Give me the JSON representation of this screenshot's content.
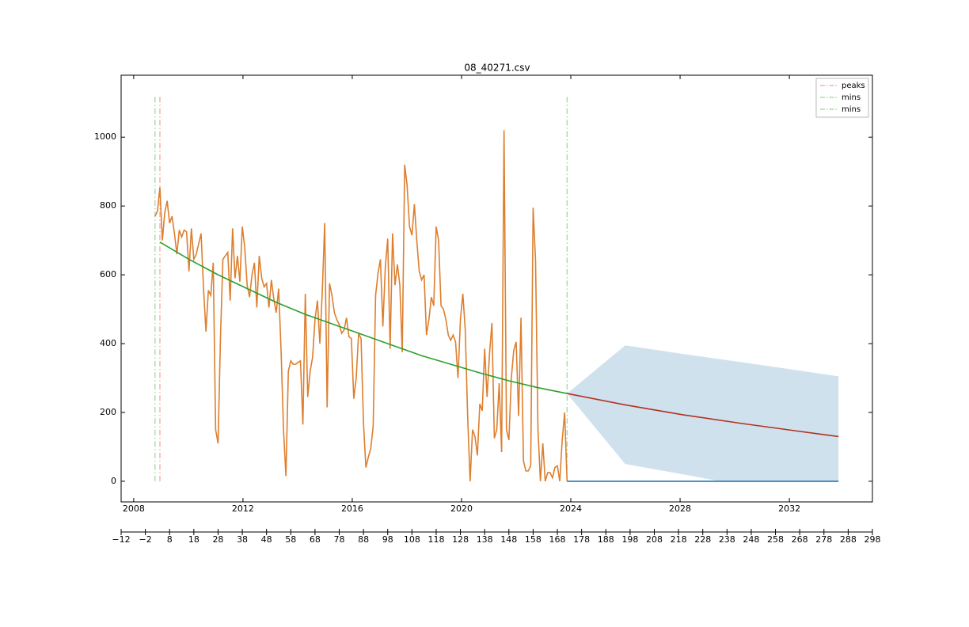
{
  "chart_data": {
    "type": "line",
    "title": "08_40271.csv",
    "xlim": [
      -12,
      298
    ],
    "xticks": [
      {
        "value": -12,
        "label": "−12"
      },
      {
        "value": -2,
        "label": "−2"
      },
      8,
      18,
      28,
      38,
      48,
      58,
      68,
      78,
      88,
      98,
      108,
      118,
      128,
      138,
      148,
      158,
      168,
      178,
      188,
      198,
      208,
      218,
      228,
      238,
      248,
      258,
      268,
      278,
      288,
      298
    ],
    "x2lim": [
      2007.54,
      2035.04
    ],
    "x2ticks": [
      2008,
      2012,
      2016,
      2020,
      2024,
      2028,
      2032
    ],
    "ylim": [
      -60,
      1180
    ],
    "yticks": [
      0,
      200,
      400,
      600,
      800,
      1000
    ],
    "legend": "upper right",
    "series": [
      {
        "color": "#dd7f2e",
        "x": [
          2,
          3,
          4,
          5,
          6,
          7,
          8,
          9,
          10,
          11,
          12,
          13,
          14,
          15,
          16,
          17,
          18,
          19,
          20,
          21,
          22,
          23,
          24,
          25,
          26,
          27,
          28,
          29,
          30,
          31,
          32,
          33,
          34,
          35,
          36,
          37,
          38,
          39,
          40,
          41,
          42,
          43,
          44,
          45,
          46,
          47,
          48,
          49,
          50,
          51,
          52,
          53,
          54,
          55,
          56,
          57,
          58,
          59,
          60,
          61,
          62,
          63,
          64,
          65,
          66,
          67,
          68,
          69,
          70,
          71,
          72,
          73,
          74,
          75,
          76,
          77,
          78,
          79,
          80,
          81,
          82,
          83,
          84,
          85,
          86,
          87,
          88,
          89,
          90,
          91,
          92,
          93,
          94,
          95,
          96,
          97,
          98,
          99,
          100,
          101,
          102,
          103,
          104,
          105,
          106,
          107,
          108,
          109,
          110,
          111,
          112,
          113,
          114,
          115,
          116,
          117,
          118,
          119,
          120,
          121,
          122,
          123,
          124,
          125,
          126,
          127,
          128,
          129,
          130,
          131,
          132,
          133,
          134,
          135,
          136,
          137,
          138,
          139,
          140,
          141,
          142,
          143,
          144,
          145,
          146,
          147,
          148,
          149,
          150,
          151,
          152,
          153,
          154,
          155,
          156,
          157,
          158,
          159,
          160,
          161,
          162,
          163,
          164,
          165,
          166,
          167,
          168,
          169,
          170,
          171,
          172
        ],
        "values": [
          770,
          785,
          855,
          700,
          780,
          815,
          750,
          770,
          720,
          660,
          730,
          710,
          730,
          725,
          610,
          735,
          645,
          660,
          690,
          720,
          560,
          435,
          555,
          540,
          635,
          150,
          110,
          420,
          645,
          655,
          665,
          525,
          735,
          590,
          655,
          580,
          740,
          680,
          570,
          535,
          600,
          635,
          505,
          655,
          590,
          565,
          575,
          505,
          585,
          530,
          490,
          560,
          380,
          150,
          15,
          320,
          350,
          340,
          340,
          345,
          350,
          165,
          545,
          245,
          320,
          360,
          470,
          525,
          400,
          550,
          750,
          215,
          575,
          540,
          490,
          470,
          455,
          430,
          440,
          475,
          420,
          415,
          240,
          300,
          430,
          415,
          170,
          40,
          70,
          95,
          160,
          540,
          605,
          645,
          450,
          620,
          705,
          385,
          720,
          570,
          630,
          570,
          375,
          920,
          860,
          740,
          715,
          805,
          700,
          610,
          585,
          600,
          425,
          470,
          535,
          510,
          740,
          700,
          510,
          500,
          470,
          425,
          410,
          425,
          405,
          300,
          470,
          545,
          440,
          185,
          0,
          150,
          130,
          75,
          225,
          205,
          385,
          245,
          370,
          460,
          125,
          150,
          285,
          85,
          1020,
          150,
          120,
          300,
          380,
          405,
          190,
          475,
          60,
          30,
          30,
          45,
          795,
          640,
          150,
          0,
          110,
          0,
          25,
          25,
          10,
          40,
          45,
          0,
          120,
          200,
          0
        ]
      },
      {
        "color": "#2ca02c",
        "x": [
          4,
          16,
          28,
          40,
          52,
          64,
          76,
          88,
          100,
          112,
          124,
          136,
          148,
          160,
          172
        ],
        "values": [
          695,
          645,
          600,
          560,
          520,
          485,
          455,
          425,
          395,
          365,
          340,
          315,
          292,
          272,
          255
        ]
      },
      {
        "color": "#b2321f",
        "x": [
          172,
          196,
          220,
          244,
          268,
          284
        ],
        "values": [
          255,
          222,
          193,
          168,
          145,
          130
        ]
      },
      {
        "color": "#1f77b4",
        "x": [
          172,
          284
        ],
        "values": [
          0,
          0
        ]
      }
    ],
    "band": {
      "color": "#d0e1ee",
      "x": [
        172,
        196,
        220,
        235,
        250,
        284
      ],
      "upper": [
        255,
        395,
        370,
        355,
        340,
        305
      ],
      "lower": [
        255,
        50,
        20,
        0,
        0,
        0
      ]
    },
    "vline_span": [
      0,
      1120
    ],
    "vlines": [
      {
        "name": "peaks",
        "color": "#f5a09a",
        "x": 4
      },
      {
        "name": "mins",
        "color": "#99d594",
        "x": 2
      },
      {
        "name": "mins",
        "color": "#99d594",
        "x": 172
      }
    ]
  }
}
